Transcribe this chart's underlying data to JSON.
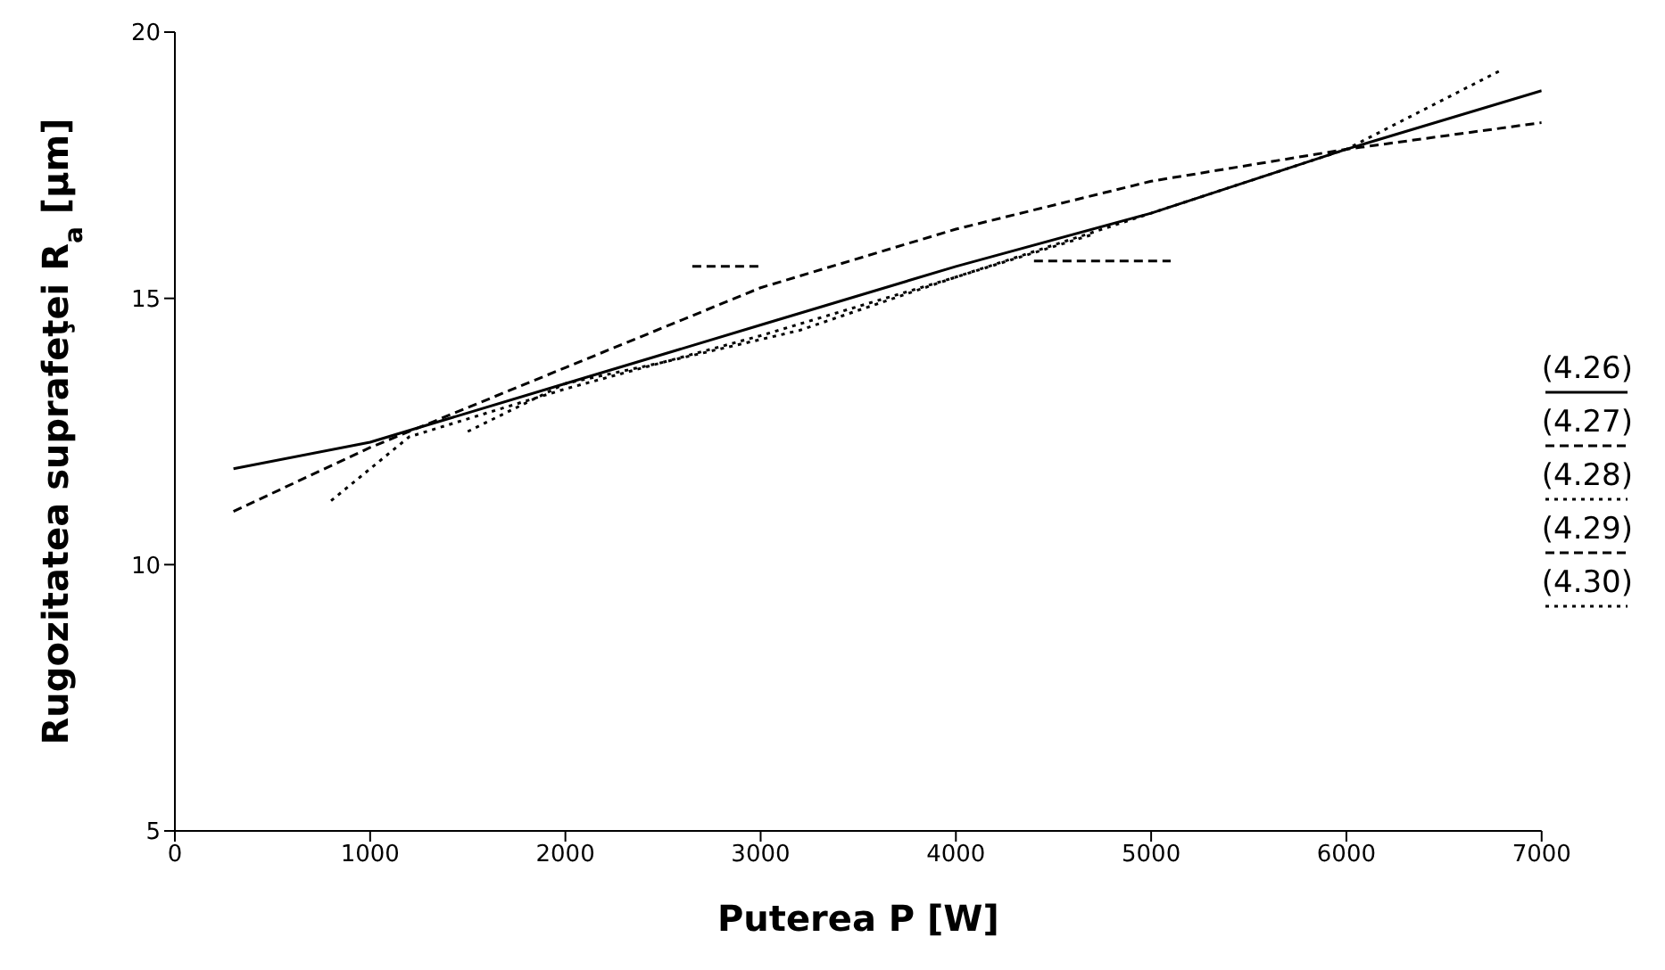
{
  "chart_data": {
    "type": "line",
    "xlabel": "Puterea P [W]",
    "ylabel": "Rugozitatea suprafeţei R$_{a}$ [µm]",
    "xlim": [
      0,
      7000
    ],
    "ylim": [
      5,
      20
    ],
    "xticks": [
      0,
      1000,
      2000,
      3000,
      4000,
      5000,
      6000,
      7000
    ],
    "yticks": [
      5,
      10,
      15,
      20
    ],
    "grid": false,
    "legend": "right",
    "marker": "none",
    "series": [
      {
        "name": "(4.26)",
        "color": "#000000",
        "line_style": "solid",
        "x": [
          300,
          1000,
          2000,
          3000,
          4000,
          5000,
          6000,
          7000
        ],
        "values": [
          11.8,
          12.3,
          13.4,
          14.5,
          15.6,
          16.6,
          17.8,
          18.9
        ]
      },
      {
        "name": "(4.27)",
        "color": "#000000",
        "line_style": "dashed",
        "x": [
          300,
          1000,
          2000,
          3000,
          4000,
          5000,
          6000,
          7000
        ],
        "values": [
          11.0,
          12.2,
          13.7,
          15.2,
          16.3,
          17.2,
          17.8,
          18.3
        ]
      },
      {
        "name": "(4.28)",
        "color": "#000000",
        "line_style": "dotted",
        "x": [
          800,
          1200,
          2000,
          3000,
          4000,
          5000,
          6000,
          6800
        ],
        "values": [
          11.2,
          12.4,
          13.3,
          14.3,
          15.4,
          16.6,
          17.8,
          19.3
        ]
      },
      {
        "name": "(4.29)",
        "color": "#000000",
        "line_style": "dashed",
        "x": [
          2650,
          3000,
          3500,
          4400,
          5100
        ],
        "values": [
          15.6,
          15.6,
          null,
          15.7,
          15.7
        ]
      },
      {
        "name": "(4.30)",
        "color": "#000000",
        "line_style": "dotted",
        "x": [
          1500,
          2000,
          2500,
          3200,
          4000,
          4700
        ],
        "values": [
          12.5,
          13.4,
          13.8,
          14.4,
          15.4,
          16.2
        ]
      }
    ]
  }
}
